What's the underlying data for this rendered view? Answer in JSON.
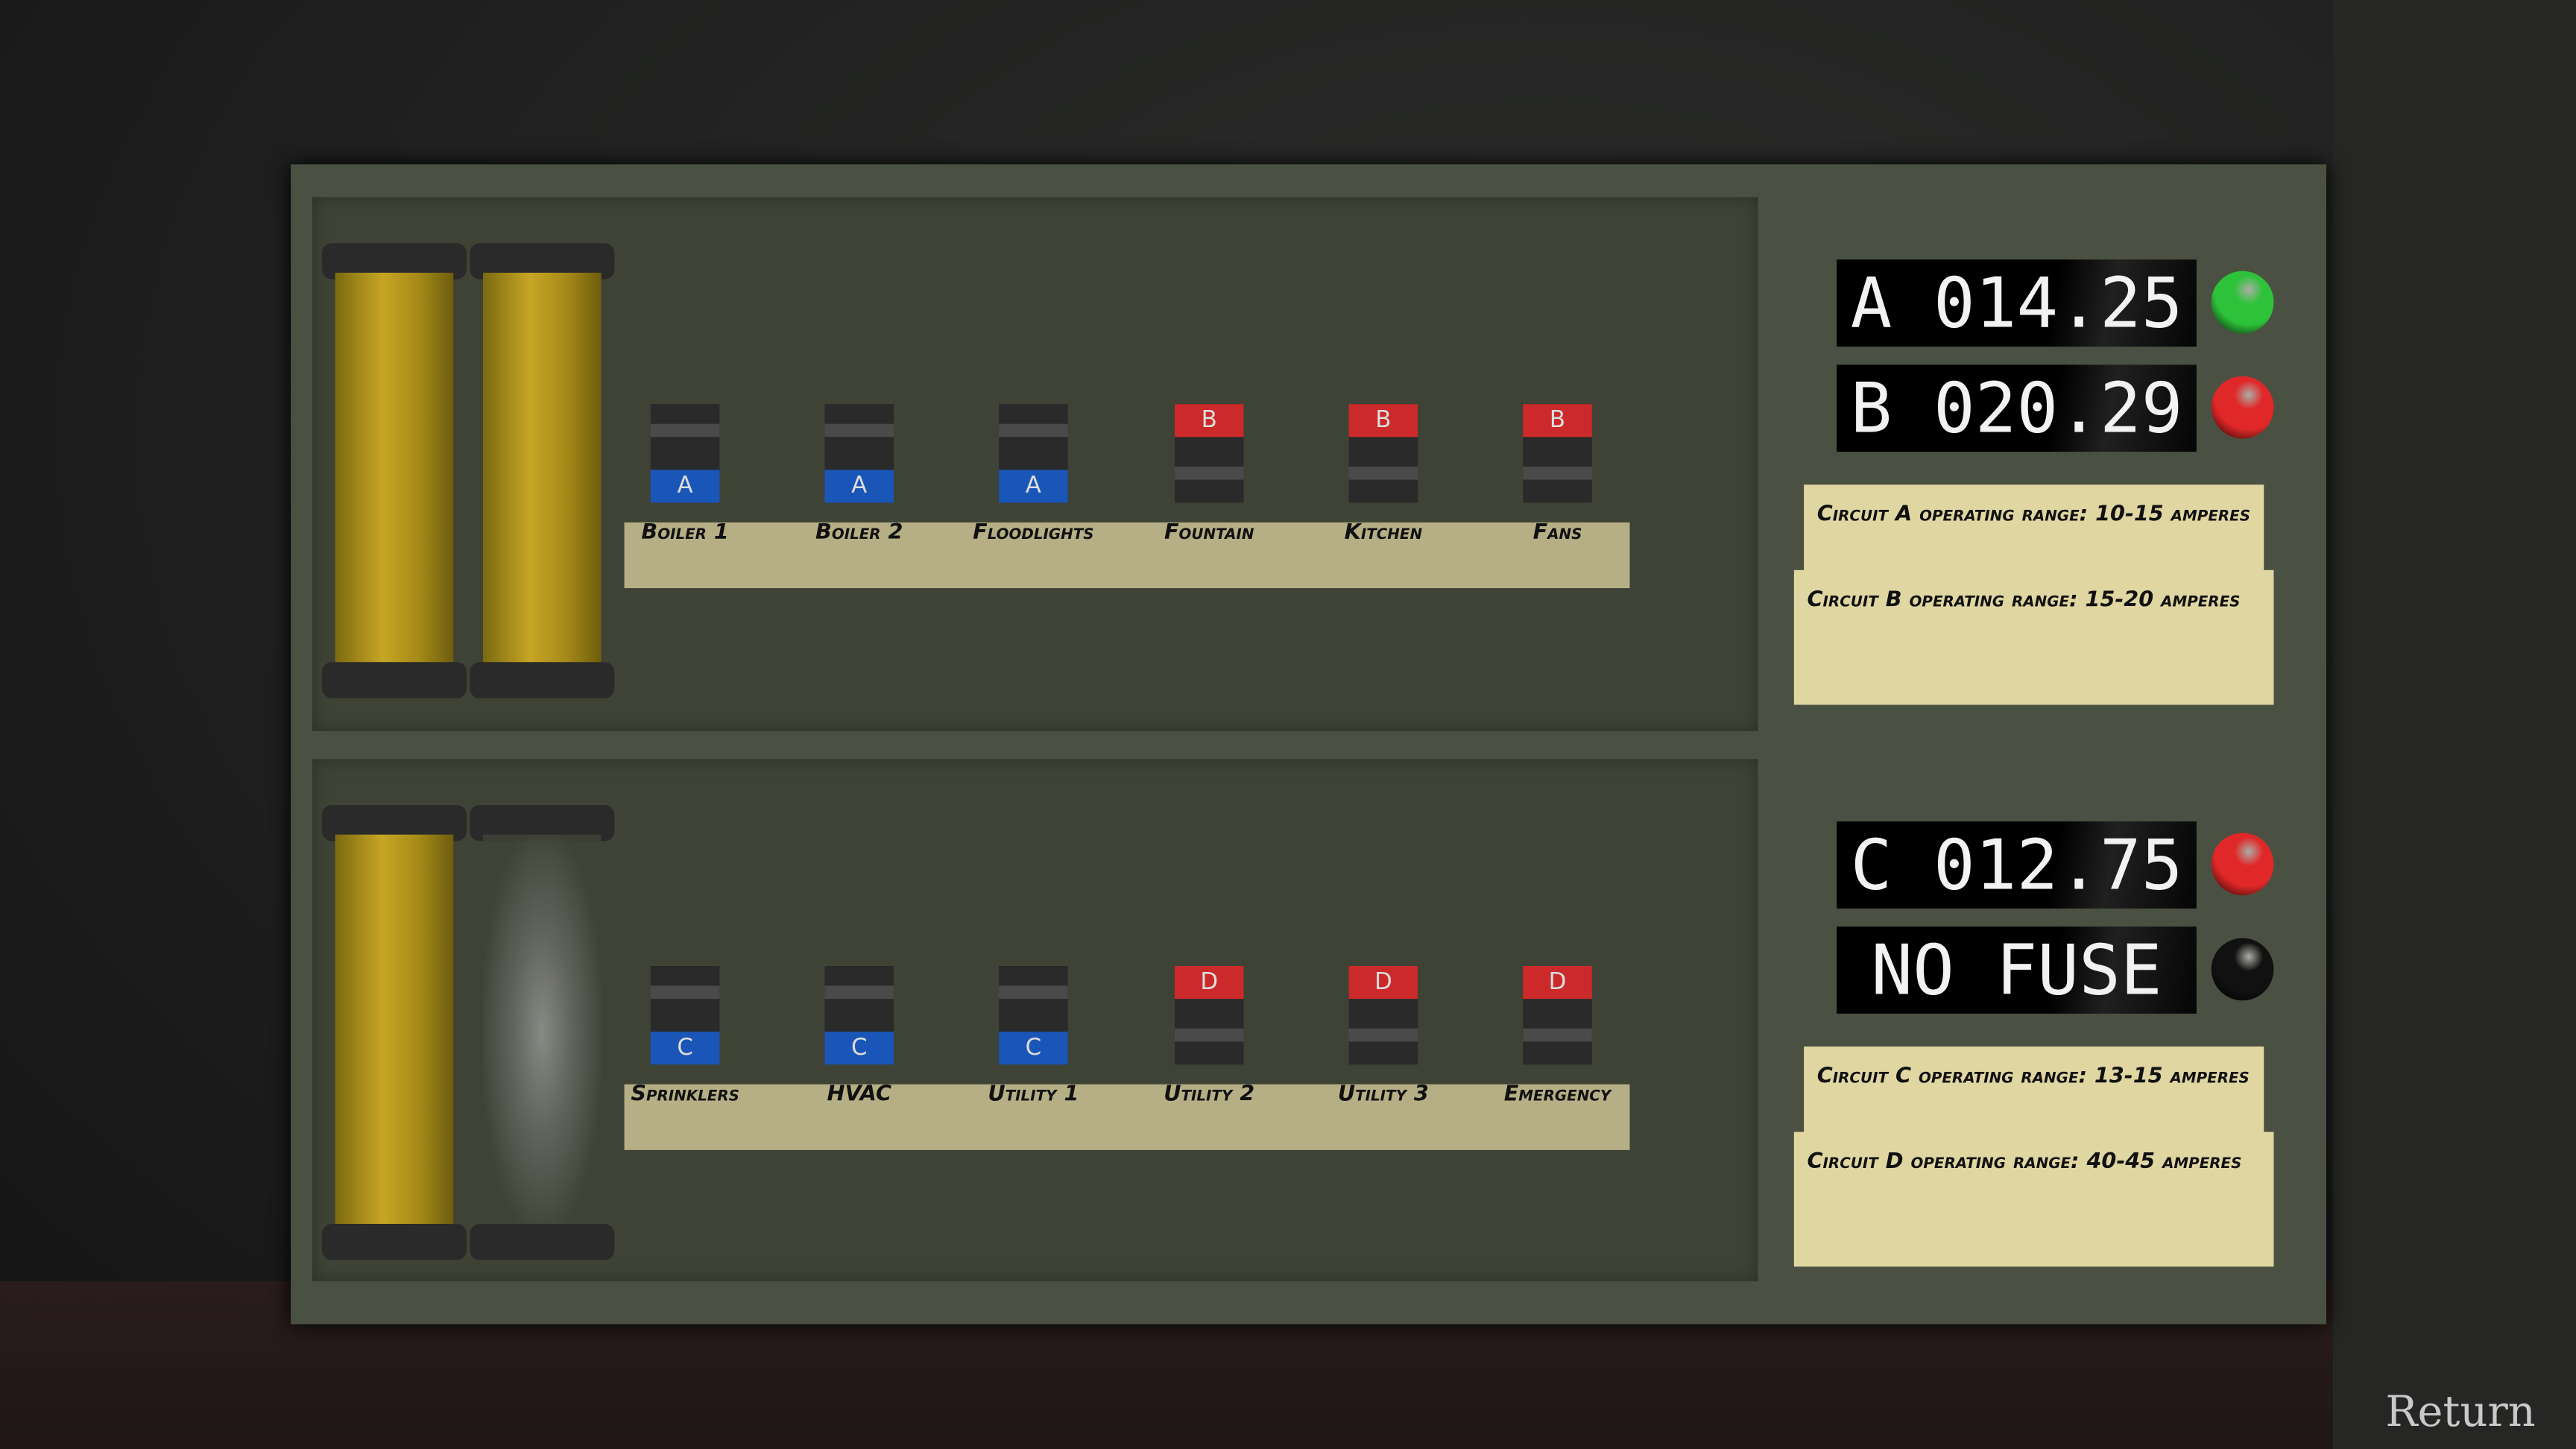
{
  "circuits_top": {
    "switches": [
      {
        "label": "Boiler 1",
        "circuit": "A",
        "color": "#1a55b8"
      },
      {
        "label": "Boiler 2",
        "circuit": "A",
        "color": "#1a55b8"
      },
      {
        "label": "Floodlights",
        "circuit": "A",
        "color": "#1a55b8"
      },
      {
        "label": "Fountain",
        "circuit": "B",
        "color": "#cc2a2a"
      },
      {
        "label": "Kitchen",
        "circuit": "B",
        "color": "#cc2a2a"
      },
      {
        "label": "Fans",
        "circuit": "B",
        "color": "#cc2a2a"
      }
    ],
    "displays": [
      {
        "text": "A 014.25",
        "light": "#2ec23a"
      },
      {
        "text": "B 020.29",
        "light": "#e02828"
      }
    ],
    "notes": [
      "Circuit A operating range: 10-15 amperes",
      "Circuit B operating range: 15-20 amperes"
    ],
    "fuses": [
      "intact",
      "intact"
    ]
  },
  "circuits_bottom": {
    "switches": [
      {
        "label": "Sprinklers",
        "circuit": "C",
        "color": "#1a55b8"
      },
      {
        "label": "HVAC",
        "circuit": "C",
        "color": "#1a55b8"
      },
      {
        "label": "Utility 1",
        "circuit": "C",
        "color": "#1a55b8"
      },
      {
        "label": "Utility 2",
        "circuit": "D",
        "color": "#cc2a2a"
      },
      {
        "label": "Utility 3",
        "circuit": "D",
        "color": "#cc2a2a"
      },
      {
        "label": "Emergency",
        "circuit": "D",
        "color": "#cc2a2a"
      }
    ],
    "displays": [
      {
        "text": "C 012.75",
        "light": "#e02828"
      },
      {
        "text": "NO FUSE",
        "light": "#111111"
      }
    ],
    "notes": [
      "Circuit C operating range: 13-15 amperes",
      "Circuit D operating range: 40-45 amperes"
    ],
    "fuses": [
      "intact",
      "blown"
    ]
  },
  "return_label": "Return"
}
